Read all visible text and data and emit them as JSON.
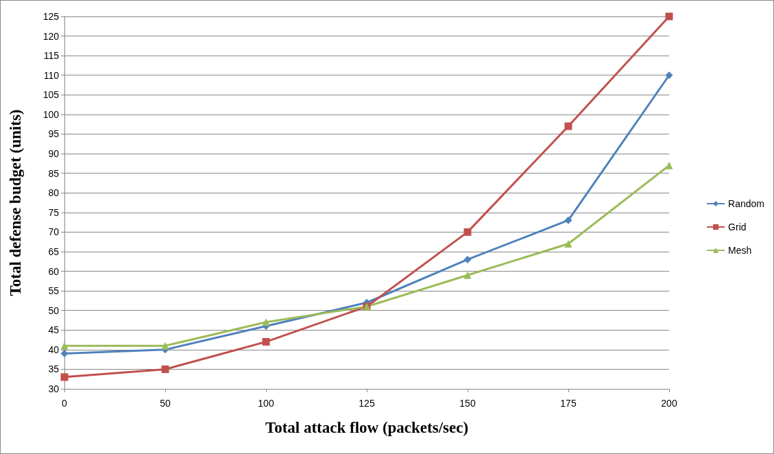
{
  "chart_data": {
    "type": "line",
    "xlabel": "Total attack flow (packets/sec)",
    "ylabel": "Total defense budget (units)",
    "categories": [
      "0",
      "50",
      "100",
      "125",
      "150",
      "175",
      "200"
    ],
    "series": [
      {
        "name": "Random",
        "color": "#4f81bd",
        "marker": "diamond",
        "values": [
          39,
          40,
          46,
          52,
          63,
          73,
          110
        ]
      },
      {
        "name": "Grid",
        "color": "#c0504d",
        "marker": "square",
        "values": [
          33,
          35,
          42,
          51,
          70,
          97,
          125
        ]
      },
      {
        "name": "Mesh",
        "color": "#9bbb59",
        "marker": "triangle",
        "values": [
          41,
          41,
          47,
          51,
          59,
          67,
          87
        ]
      }
    ],
    "ylim": [
      30,
      125
    ],
    "yticks": [
      30,
      35,
      40,
      45,
      50,
      55,
      60,
      65,
      70,
      75,
      80,
      85,
      90,
      95,
      100,
      105,
      110,
      115,
      120,
      125
    ],
    "grid": "y",
    "legend": "right",
    "line_style": "solid"
  }
}
